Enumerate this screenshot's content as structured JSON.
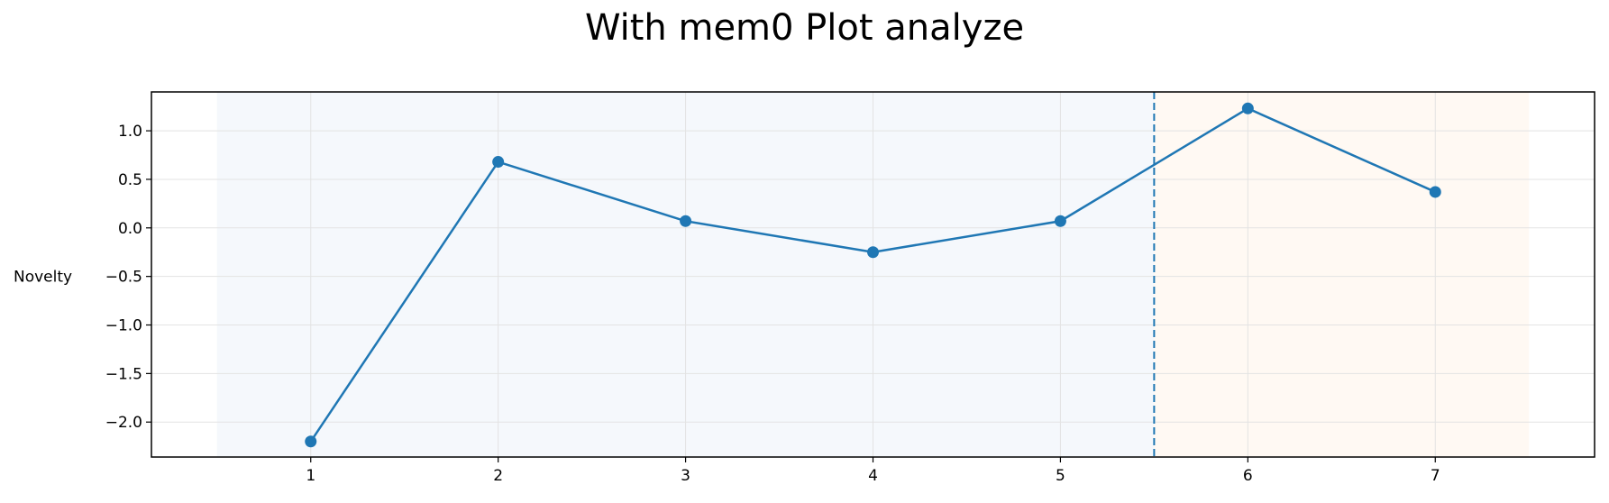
{
  "chart_data": {
    "type": "line",
    "title": "With mem0 Plot analyze",
    "xlabel": "",
    "ylabel": "Novelty",
    "x": [
      1,
      2,
      3,
      4,
      5,
      6,
      7
    ],
    "series": [
      {
        "values": [
          -2.2,
          0.68,
          0.07,
          -0.25,
          0.07,
          1.23,
          0.37
        ]
      }
    ],
    "xticks": [
      1,
      2,
      3,
      4,
      5,
      6,
      7
    ],
    "xtick_labels": [
      "1",
      "2",
      "3",
      "4",
      "5",
      "6",
      "7"
    ],
    "yticks": [
      1.0,
      0.5,
      0.0,
      -0.5,
      -1.0,
      -1.5,
      -2.0
    ],
    "ytick_labels": [
      "1.0",
      "0.5",
      "0.0",
      "−0.5",
      "−1.0",
      "−1.5",
      "−2.0"
    ],
    "xlim": [
      0.15,
      7.85
    ],
    "ylim": [
      -2.36,
      1.4
    ],
    "grid": true,
    "vline": {
      "x": 5.5,
      "style": "dashed"
    },
    "shaded_regions": [
      {
        "from": 0.5,
        "to": 5.5,
        "color": "#f5f8fc"
      },
      {
        "from": 5.5,
        "to": 7.5,
        "color": "#fff9f3"
      }
    ],
    "line_color": "#1f77b4"
  }
}
